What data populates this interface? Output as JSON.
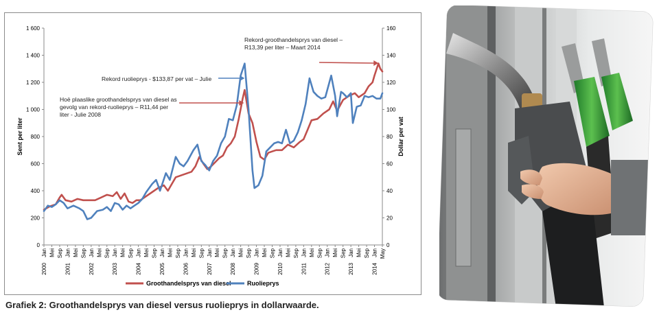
{
  "caption": "Grafiek 2: Groothandelsprys van diesel versus ruolieprys in dollarwaarde.",
  "chart_data": {
    "type": "line",
    "ylabel": "Sent per liter",
    "y2label": "Dollar per vat",
    "ylim": [
      0,
      1600
    ],
    "y2lim": [
      0,
      160
    ],
    "yticks": [
      "0",
      "200",
      "400",
      "600",
      "800",
      "1 000",
      "1 200",
      "1 400",
      "1 600"
    ],
    "y2ticks": [
      "0",
      "20",
      "40",
      "60",
      "80",
      "100",
      "120",
      "140",
      "160"
    ],
    "month_labels": [
      "Jan",
      "Mei",
      "Sep"
    ],
    "x_year_labels": [
      "2000",
      "2001",
      "2002",
      "2003",
      "2004",
      "2005",
      "2006",
      "2007",
      "2008",
      "2009",
      "2010",
      "2011",
      "2012",
      "2013",
      "2014"
    ],
    "x_tick_labels_end": [
      "Jan",
      "May"
    ],
    "legend_position": "bottom",
    "grid": false,
    "annotations": [
      {
        "text": "Rekord ruolieprys - $133,87 per  vat – Julie",
        "series": "Ruolieprys",
        "date": "2008-07",
        "value": 133.87
      },
      {
        "lines": [
          "Hoë plaaslike groothandelsprys van diesel as",
          "gevolg van rekord-ruolieprys – R11,44 per",
          "liter - Julie 2008"
        ],
        "series": "Groothandelsprys van diesel",
        "date": "2008-07",
        "value": 1144
      },
      {
        "lines": [
          "Rekord-groothandelsprys van diesel –",
          "R13,39 per liter – Maart 2014"
        ],
        "series": "Groothandelsprys van diesel",
        "date": "2014-03",
        "value": 1339
      }
    ],
    "series": [
      {
        "name": "Groothandelsprys van diesel",
        "axis": "left",
        "color": "#c0504d",
        "points": [
          [
            "2000-01",
            260
          ],
          [
            "2000-04",
            285
          ],
          [
            "2000-07",
            300
          ],
          [
            "2000-09",
            350
          ],
          [
            "2000-10",
            370
          ],
          [
            "2000-12",
            330
          ],
          [
            "2001-03",
            320
          ],
          [
            "2001-06",
            340
          ],
          [
            "2001-09",
            330
          ],
          [
            "2001-12",
            330
          ],
          [
            "2002-03",
            330
          ],
          [
            "2002-06",
            350
          ],
          [
            "2002-09",
            370
          ],
          [
            "2002-12",
            360
          ],
          [
            "2003-02",
            390
          ],
          [
            "2003-04",
            340
          ],
          [
            "2003-06",
            380
          ],
          [
            "2003-08",
            320
          ],
          [
            "2003-10",
            310
          ],
          [
            "2003-12",
            330
          ],
          [
            "2004-02",
            330
          ],
          [
            "2004-05",
            360
          ],
          [
            "2004-08",
            390
          ],
          [
            "2004-11",
            420
          ],
          [
            "2005-02",
            440
          ],
          [
            "2005-04",
            400
          ],
          [
            "2005-06",
            450
          ],
          [
            "2005-08",
            500
          ],
          [
            "2005-10",
            510
          ],
          [
            "2005-12",
            520
          ],
          [
            "2006-02",
            530
          ],
          [
            "2006-04",
            540
          ],
          [
            "2006-06",
            580
          ],
          [
            "2006-08",
            650
          ],
          [
            "2006-10",
            600
          ],
          [
            "2006-12",
            560
          ],
          [
            "2007-02",
            580
          ],
          [
            "2007-04",
            610
          ],
          [
            "2007-06",
            640
          ],
          [
            "2007-08",
            660
          ],
          [
            "2007-10",
            720
          ],
          [
            "2007-12",
            750
          ],
          [
            "2008-02",
            800
          ],
          [
            "2008-04",
            930
          ],
          [
            "2008-06",
            1080
          ],
          [
            "2008-07",
            1144
          ],
          [
            "2008-09",
            970
          ],
          [
            "2008-11",
            900
          ],
          [
            "2009-01",
            760
          ],
          [
            "2009-03",
            650
          ],
          [
            "2009-05",
            630
          ],
          [
            "2009-07",
            680
          ],
          [
            "2009-09",
            690
          ],
          [
            "2009-11",
            700
          ],
          [
            "2010-02",
            700
          ],
          [
            "2010-05",
            740
          ],
          [
            "2010-08",
            720
          ],
          [
            "2010-11",
            760
          ],
          [
            "2011-01",
            780
          ],
          [
            "2011-03",
            850
          ],
          [
            "2011-05",
            920
          ],
          [
            "2011-08",
            930
          ],
          [
            "2011-11",
            970
          ],
          [
            "2012-02",
            1000
          ],
          [
            "2012-04",
            1060
          ],
          [
            "2012-06",
            990
          ],
          [
            "2012-09",
            1070
          ],
          [
            "2012-12",
            1100
          ],
          [
            "2013-03",
            1120
          ],
          [
            "2013-05",
            1090
          ],
          [
            "2013-08",
            1120
          ],
          [
            "2013-10",
            1170
          ],
          [
            "2013-12",
            1200
          ],
          [
            "2014-01",
            1250
          ],
          [
            "2014-03",
            1339
          ],
          [
            "2014-04",
            1300
          ],
          [
            "2014-05",
            1280
          ]
        ]
      },
      {
        "name": "Ruolieprys",
        "axis": "right",
        "color": "#4f81bd",
        "points": [
          [
            "2000-01",
            25
          ],
          [
            "2000-03",
            29
          ],
          [
            "2000-05",
            28
          ],
          [
            "2000-07",
            30
          ],
          [
            "2000-09",
            33
          ],
          [
            "2000-11",
            31
          ],
          [
            "2001-01",
            27
          ],
          [
            "2001-04",
            29
          ],
          [
            "2001-07",
            27
          ],
          [
            "2001-09",
            25
          ],
          [
            "2001-11",
            19
          ],
          [
            "2002-01",
            20
          ],
          [
            "2002-04",
            25
          ],
          [
            "2002-07",
            26
          ],
          [
            "2002-09",
            28
          ],
          [
            "2002-11",
            25
          ],
          [
            "2003-01",
            31
          ],
          [
            "2003-03",
            30
          ],
          [
            "2003-05",
            26
          ],
          [
            "2003-07",
            29
          ],
          [
            "2003-09",
            27
          ],
          [
            "2003-11",
            29
          ],
          [
            "2004-01",
            31
          ],
          [
            "2004-03",
            34
          ],
          [
            "2004-05",
            39
          ],
          [
            "2004-08",
            45
          ],
          [
            "2004-10",
            48
          ],
          [
            "2004-12",
            40
          ],
          [
            "2005-03",
            53
          ],
          [
            "2005-05",
            48
          ],
          [
            "2005-08",
            65
          ],
          [
            "2005-10",
            60
          ],
          [
            "2005-12",
            58
          ],
          [
            "2006-02",
            62
          ],
          [
            "2006-05",
            70
          ],
          [
            "2006-07",
            74
          ],
          [
            "2006-09",
            62
          ],
          [
            "2006-11",
            59
          ],
          [
            "2007-01",
            55
          ],
          [
            "2007-03",
            62
          ],
          [
            "2007-05",
            66
          ],
          [
            "2007-07",
            75
          ],
          [
            "2007-09",
            80
          ],
          [
            "2007-11",
            93
          ],
          [
            "2008-01",
            92
          ],
          [
            "2008-03",
            103
          ],
          [
            "2008-05",
            125
          ],
          [
            "2008-07",
            133.87
          ],
          [
            "2008-09",
            100
          ],
          [
            "2008-11",
            55
          ],
          [
            "2008-12",
            42
          ],
          [
            "2009-02",
            44
          ],
          [
            "2009-04",
            51
          ],
          [
            "2009-06",
            69
          ],
          [
            "2009-08",
            72
          ],
          [
            "2009-10",
            75
          ],
          [
            "2009-12",
            76
          ],
          [
            "2010-02",
            75
          ],
          [
            "2010-04",
            85
          ],
          [
            "2010-06",
            75
          ],
          [
            "2010-08",
            77
          ],
          [
            "2010-10",
            83
          ],
          [
            "2010-12",
            92
          ],
          [
            "2011-02",
            104
          ],
          [
            "2011-04",
            123
          ],
          [
            "2011-06",
            113
          ],
          [
            "2011-08",
            110
          ],
          [
            "2011-10",
            108
          ],
          [
            "2011-12",
            109
          ],
          [
            "2012-03",
            125
          ],
          [
            "2012-05",
            110
          ],
          [
            "2012-06",
            95
          ],
          [
            "2012-08",
            113
          ],
          [
            "2012-09",
            112
          ],
          [
            "2012-11",
            109
          ],
          [
            "2013-01",
            112
          ],
          [
            "2013-02",
            90
          ],
          [
            "2013-04",
            102
          ],
          [
            "2013-06",
            103
          ],
          [
            "2013-08",
            110
          ],
          [
            "2013-10",
            109
          ],
          [
            "2013-12",
            110
          ],
          [
            "2014-02",
            108
          ],
          [
            "2014-04",
            108
          ],
          [
            "2014-05",
            112
          ]
        ]
      }
    ]
  }
}
